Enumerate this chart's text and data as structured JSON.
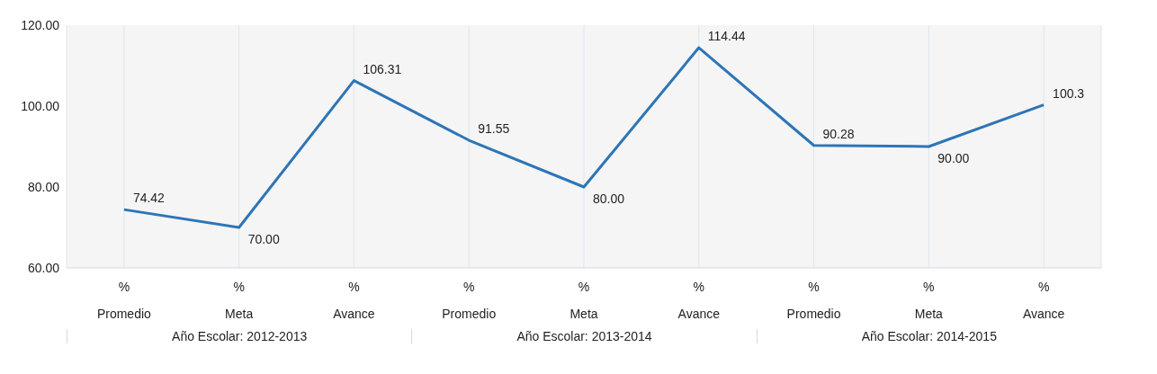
{
  "chart_data": {
    "type": "line",
    "categories": [
      "% Promedio",
      "% Meta",
      "% Avance",
      "% Promedio",
      "% Meta",
      "% Avance",
      "% Promedio",
      "% Meta",
      "% Avance"
    ],
    "values": [
      74.42,
      70.0,
      106.31,
      91.55,
      80.0,
      114.44,
      90.28,
      90.0,
      100.3
    ],
    "value_labels": [
      "74.42",
      "70.00",
      "106.31",
      "91.55",
      "80.00",
      "114.44",
      "90.28",
      "90.00",
      "100.3"
    ],
    "color": "#2e75b6",
    "ylim": [
      60,
      120
    ],
    "yticks": [
      {
        "value": 60,
        "label": "60.00"
      },
      {
        "value": 80,
        "label": "80.00"
      },
      {
        "value": 100,
        "label": "100.00"
      },
      {
        "value": 120,
        "label": "120.00"
      }
    ],
    "grid": "x",
    "marker": "none",
    "annotations": [
      "Año Escolar: 2012-2013",
      "Año Escolar: 2013-2014",
      "Año Escolar: 2014-2015"
    ]
  }
}
